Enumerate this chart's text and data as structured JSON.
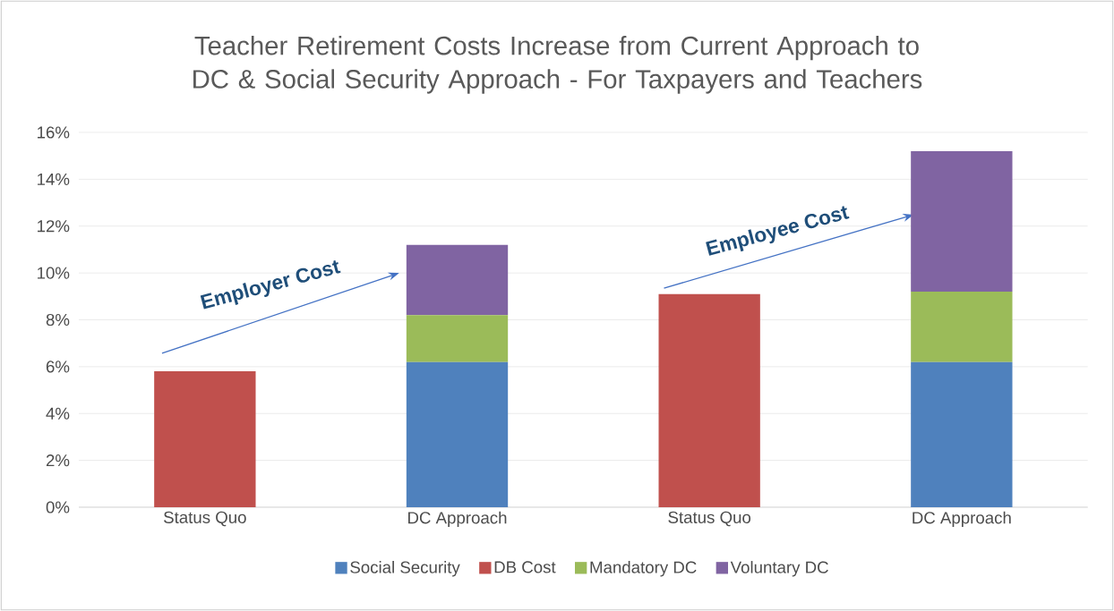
{
  "chart_data": {
    "type": "bar",
    "stacked": true,
    "title": "Teacher Retirement Costs Increase from Current Approach to DC & Social Security Approach - For Taxpayers and Teachers",
    "categories": [
      "Status Quo",
      "DC Approach",
      "Status Quo",
      "DC Approach"
    ],
    "series": [
      {
        "name": "Social Security",
        "color": "#4f81bd",
        "values": [
          0,
          6.2,
          0,
          6.2
        ]
      },
      {
        "name": "DB Cost",
        "color": "#c0504d",
        "values": [
          5.8,
          0,
          9.1,
          0
        ]
      },
      {
        "name": "Mandatory DC",
        "color": "#9bbb59",
        "values": [
          0,
          2.0,
          0,
          3.0
        ]
      },
      {
        "name": "Voluntary DC",
        "color": "#8064a2",
        "values": [
          0,
          3.0,
          0,
          6.0
        ]
      }
    ],
    "ylim": [
      0,
      16
    ],
    "yticks": [
      {
        "value": 0,
        "label": "0%"
      },
      {
        "value": 2,
        "label": "2%"
      },
      {
        "value": 4,
        "label": "4%"
      },
      {
        "value": 6,
        "label": "6%"
      },
      {
        "value": 8,
        "label": "8%"
      },
      {
        "value": 10,
        "label": "10%"
      },
      {
        "value": 12,
        "label": "12%"
      },
      {
        "value": 14,
        "label": "14%"
      },
      {
        "value": 16,
        "label": "16%"
      }
    ],
    "grid": "y",
    "legend": "bottom",
    "annotations": [
      "Employer Cost",
      "Employee Cost"
    ]
  }
}
